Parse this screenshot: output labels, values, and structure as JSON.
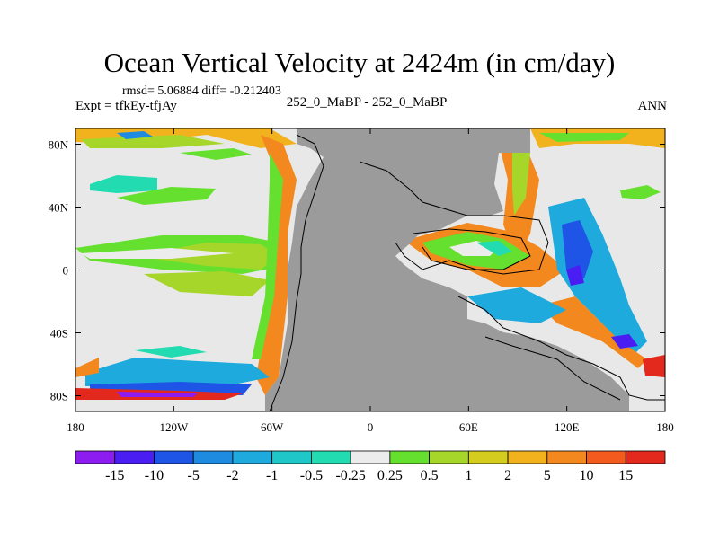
{
  "title": "Ocean Vertical Velocity at 2424m (in cm/day)",
  "stats": "rmsd= 5.06884 diff= -0.212403",
  "experiment": "Expt = tfkEy-tfjAy",
  "case_label": "252_0_MaBP - 252_0_MaBP",
  "season": "ANN",
  "map": {
    "lon_ticks": [
      "180",
      "120W",
      "60W",
      "0",
      "60E",
      "120E",
      "180"
    ],
    "lat_ticks": [
      "80N",
      "40N",
      "0",
      "40S",
      "80S"
    ],
    "land_color": "#9b9b9b",
    "ocean_neutral_color": "#e8e8e8"
  },
  "colorbar": {
    "labels": [
      "-15",
      "-10",
      "-5",
      "-2",
      "-1",
      "-0.5",
      "-0.25",
      "0.25",
      "0.5",
      "1",
      "2",
      "5",
      "10",
      "15"
    ],
    "colors": [
      "#8c1cf0",
      "#4a1ef2",
      "#1e55e6",
      "#1e8be0",
      "#1eaadd",
      "#1fc7c9",
      "#22dbb0",
      "#ececec",
      "#66e02e",
      "#a6d629",
      "#d4cc1e",
      "#f2b21e",
      "#f2881e",
      "#f25a1e",
      "#e3281e"
    ]
  }
}
